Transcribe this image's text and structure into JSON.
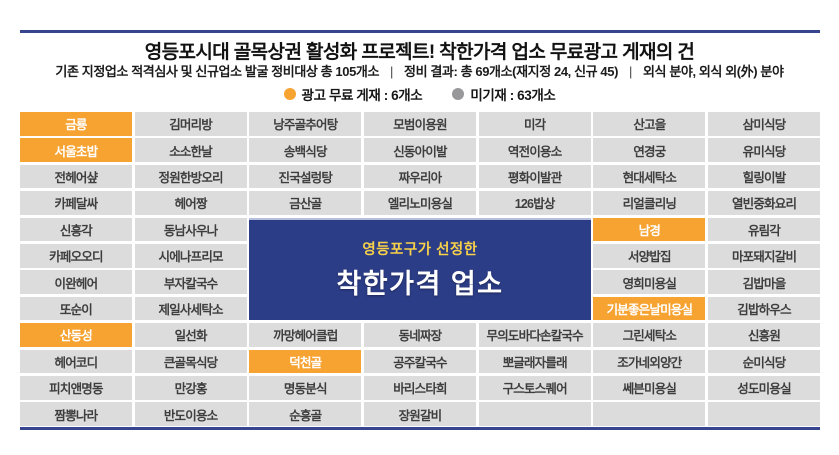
{
  "document": {
    "title": "영등포시대 골목상권 활성화 프로젝트! 착한가격 업소 무료광고 게재의 건",
    "subtitle": {
      "part1": "기존 지정업소 적격심사 및 신규업소 발굴 정비대상 총 105개소",
      "part2": "정비 결과: 총 69개소(재지정 24, 신규 45)",
      "part3": "외식 분야, 외식 외(外) 분야",
      "separator": "|"
    },
    "legend": {
      "featured": {
        "label": "광고 무료 게재 : 6개소",
        "color": "#f7a331"
      },
      "not_listed": {
        "label": "미기재 : 63개소",
        "color": "#98989a"
      }
    }
  },
  "banner": {
    "line1": "영등포구가 선정한",
    "line2": "착한가격 업소",
    "background": "#2c3d87",
    "line1_color": "#f7d149",
    "line2_color": "#ffffff"
  },
  "table": {
    "columns": 7,
    "highlight_color": "#f7a331",
    "cell_color": "#dcdcdd",
    "rows": [
      [
        {
          "t": "금룡",
          "hl": true
        },
        {
          "t": "김머리방"
        },
        {
          "t": "낭주골추어탕"
        },
        {
          "t": "모범이용원"
        },
        {
          "t": "미각"
        },
        {
          "t": "산고을"
        },
        {
          "t": "삼미식당"
        }
      ],
      [
        {
          "t": "서울초밥",
          "hl": true
        },
        {
          "t": "소소한날"
        },
        {
          "t": "송백식당"
        },
        {
          "t": "신동아이발"
        },
        {
          "t": "역전이용소"
        },
        {
          "t": "연경궁"
        },
        {
          "t": "유미식당"
        }
      ],
      [
        {
          "t": "전헤어샾"
        },
        {
          "t": "정원한방오리"
        },
        {
          "t": "진국설렁탕"
        },
        {
          "t": "짜우리아"
        },
        {
          "t": "평화이발관"
        },
        {
          "t": "현대세탁소"
        },
        {
          "t": "힐링이발"
        }
      ],
      [
        {
          "t": "카페달싸"
        },
        {
          "t": "헤어짱"
        },
        {
          "t": "금산골"
        },
        {
          "t": "엘리노미용실"
        },
        {
          "t": "126밥상"
        },
        {
          "t": "리얼클리닝"
        },
        {
          "t": "열빈중화요리"
        }
      ],
      [
        {
          "t": "신흥각"
        },
        {
          "t": "동남사우나"
        },
        null,
        null,
        null,
        {
          "t": "남경",
          "hl": true
        },
        {
          "t": "유림각"
        }
      ],
      [
        {
          "t": "카페오오디"
        },
        {
          "t": "시에나프리모"
        },
        null,
        null,
        null,
        {
          "t": "서양밥집"
        },
        {
          "t": "마포돼지갈비"
        }
      ],
      [
        {
          "t": "이완헤어"
        },
        {
          "t": "부자칼국수"
        },
        null,
        null,
        null,
        {
          "t": "영희미용실"
        },
        {
          "t": "김밥마을"
        }
      ],
      [
        {
          "t": "또순이"
        },
        {
          "t": "제일사세탁소"
        },
        null,
        null,
        null,
        {
          "t": "기분좋은날미용실",
          "hl": true
        },
        {
          "t": "김밥하우스"
        }
      ],
      [
        {
          "t": "산동성",
          "hl": true
        },
        {
          "t": "일선화"
        },
        {
          "t": "까망헤어클럽"
        },
        {
          "t": "동네짜장"
        },
        {
          "t": "무의도바다손칼국수"
        },
        {
          "t": "그린세탁소"
        },
        {
          "t": "신흥원"
        }
      ],
      [
        {
          "t": "헤어코디"
        },
        {
          "t": "큰골목식당"
        },
        {
          "t": "덕천골",
          "hl": true
        },
        {
          "t": "공주칼국수"
        },
        {
          "t": "뽀글래자를래"
        },
        {
          "t": "조가네외양간"
        },
        {
          "t": "순미식당"
        }
      ],
      [
        {
          "t": "피치앤명동"
        },
        {
          "t": "만강홍"
        },
        {
          "t": "명동분식"
        },
        {
          "t": "바리스타희"
        },
        {
          "t": "구스토스퀘어"
        },
        {
          "t": "쎄븐미용실"
        },
        {
          "t": "성도미용실"
        }
      ],
      [
        {
          "t": "짬뽕나라"
        },
        {
          "t": "반도이용소"
        },
        {
          "t": "순흥골"
        },
        {
          "t": "장원갈비"
        },
        {
          "t": ""
        },
        {
          "t": ""
        },
        {
          "t": ""
        }
      ]
    ]
  }
}
